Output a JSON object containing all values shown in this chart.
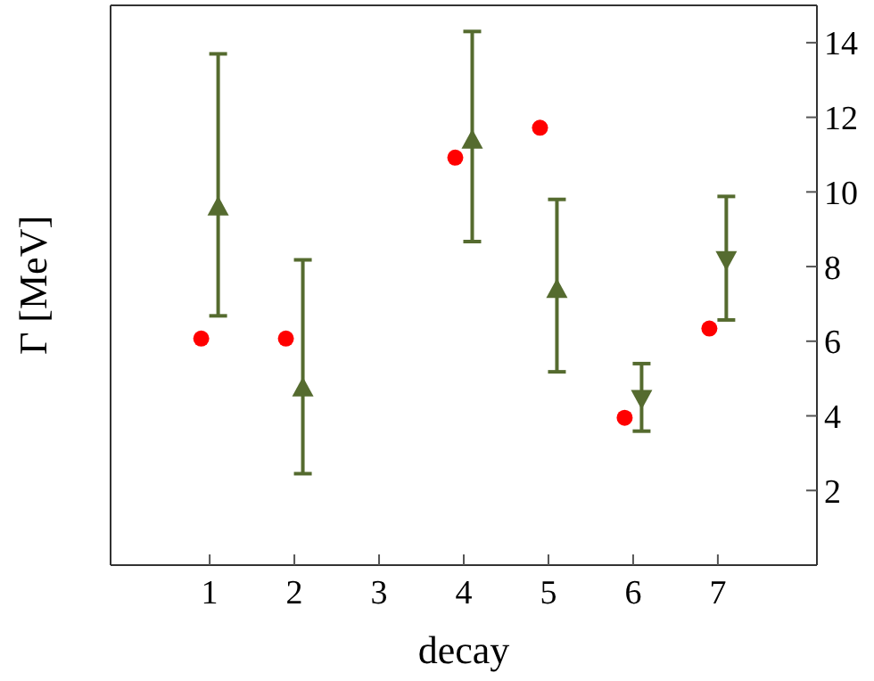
{
  "chart_data": {
    "type": "scatter",
    "xlabel": "decay",
    "ylabel": "Γ [MeV]",
    "xlim": [
      -0.17,
      8.17
    ],
    "xticks": [
      1,
      2,
      3,
      4,
      5,
      6,
      7
    ],
    "ylim": [
      0,
      15
    ],
    "yticks": [
      2,
      4,
      6,
      8,
      10,
      12,
      14
    ],
    "series": [
      {
        "type": "scatter",
        "marker": "circle",
        "color": "#ff0000",
        "x": [
          0.9,
          1.9,
          3.9,
          4.9,
          5.9,
          6.9
        ],
        "values": [
          6.07,
          6.07,
          10.92,
          11.72,
          3.95,
          6.34
        ]
      },
      {
        "type": "scatter",
        "marker": "triangle",
        "color": "#556b2f",
        "x": [
          1.1,
          2.1,
          4.1,
          5.1
        ],
        "values": [
          9.56,
          4.71,
          11.35,
          7.35
        ],
        "errors": [
          [
            6.68,
            13.7
          ],
          [
            2.45,
            8.18
          ],
          [
            8.67,
            14.3
          ],
          [
            5.18,
            9.8
          ]
        ]
      },
      {
        "type": "scatter",
        "marker": "triangle_down",
        "color": "#556b2f",
        "x": [
          6.1,
          7.1
        ],
        "values": [
          4.5,
          8.22
        ],
        "errors": [
          [
            3.59,
            5.4
          ],
          [
            6.57,
            9.88
          ]
        ]
      }
    ]
  }
}
